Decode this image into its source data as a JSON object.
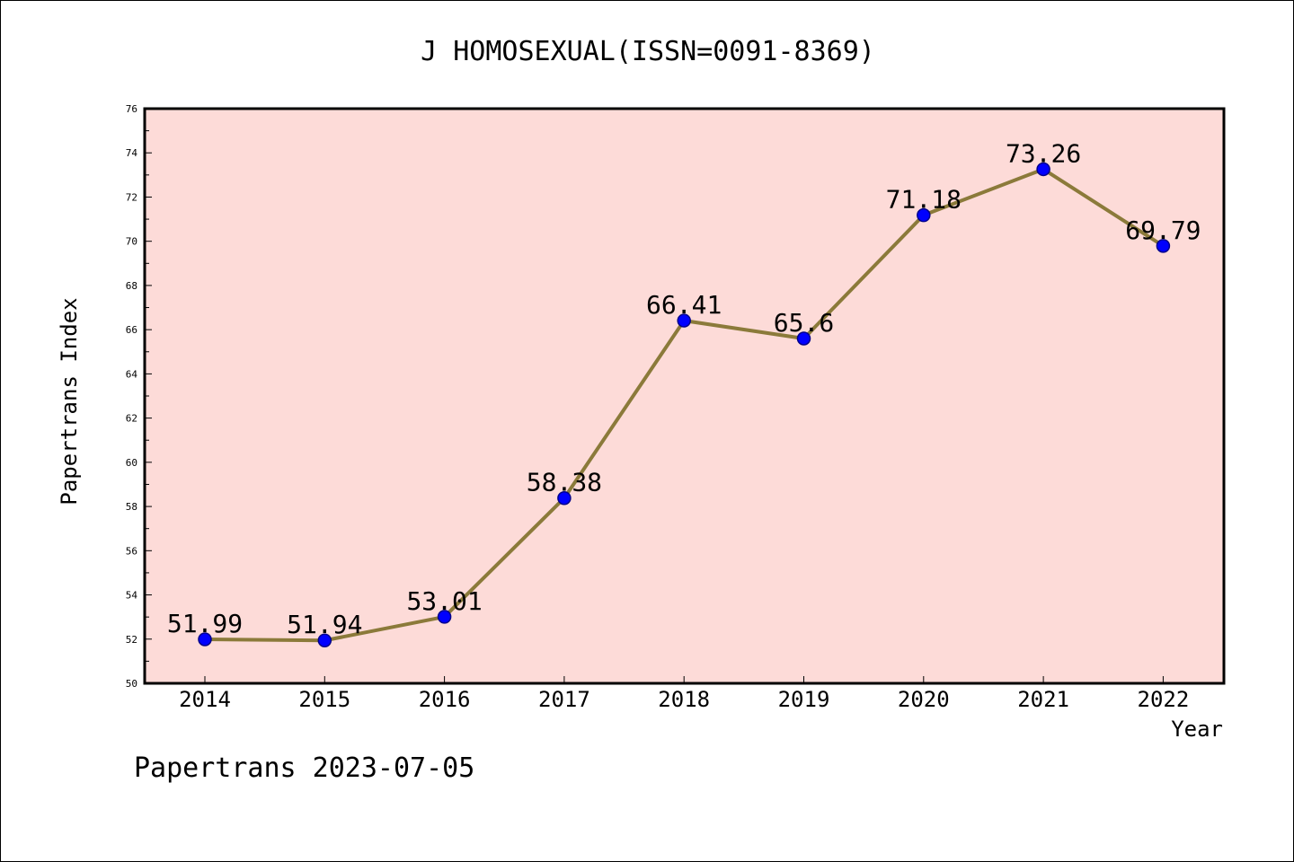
{
  "chart_data": {
    "type": "line",
    "title": "J HOMOSEXUAL(ISSN=0091-8369)",
    "xlabel": "Year",
    "ylabel": "Papertrans Index",
    "x": [
      "2014",
      "2015",
      "2016",
      "2017",
      "2018",
      "2019",
      "2020",
      "2021",
      "2022"
    ],
    "series": [
      {
        "values": [
          51.99,
          51.94,
          53.01,
          58.38,
          66.41,
          65.6,
          71.18,
          73.26,
          69.79
        ],
        "labels": [
          "51.99",
          "51.94",
          "53.01",
          "58.38",
          "66.41",
          "65.6",
          "71.18",
          "73.26",
          "69.79"
        ]
      }
    ],
    "ylim": [
      50,
      76
    ],
    "yticks": [
      "50",
      "52",
      "54",
      "56",
      "58",
      "60",
      "62",
      "64",
      "66",
      "68",
      "70",
      "72",
      "74",
      "76"
    ],
    "grid": false,
    "colors": {
      "plot_background": "#fddbd8",
      "line": "#8b7a3a",
      "marker": "#0000ff",
      "marker_edge": "#00008b"
    }
  },
  "footer": "Papertrans 2023-07-05"
}
